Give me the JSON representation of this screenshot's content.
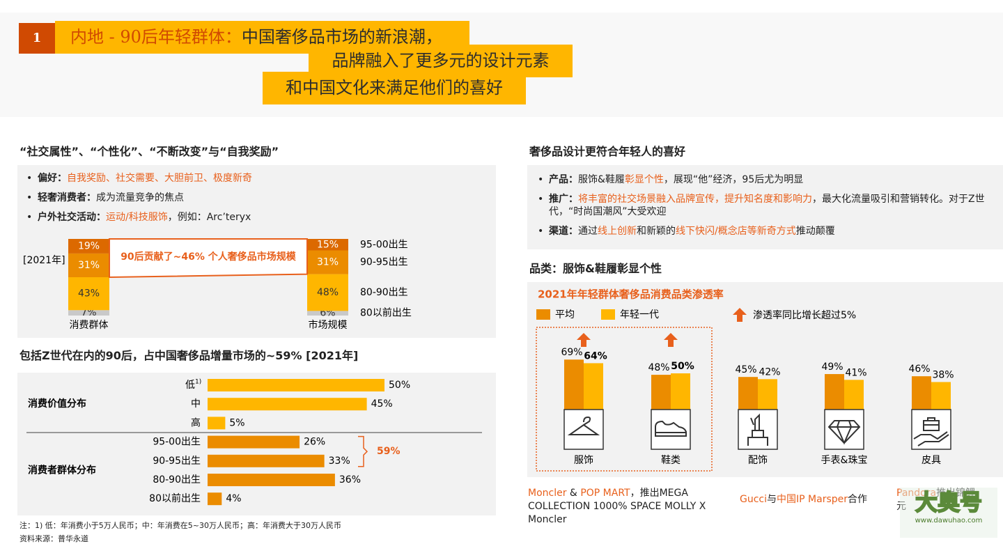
{
  "header": {
    "number": "1",
    "line1": [
      {
        "text": "内地 - 90后年轻群体：",
        "color": "#d04a02"
      },
      {
        "text": "中国奢侈品市场的新浪潮，",
        "color": "#2d2d2d"
      }
    ],
    "line2": "品牌融入了更多元的设计元素",
    "line3": "和中国文化来满足他们的喜好"
  },
  "left": {
    "title": "“社交属性”、“个性化”、“不断改变”与“自我奖励”",
    "bullets": [
      [
        {
          "text": "偏好："
        },
        {
          "text": "自我奖励、社交需要、大胆前卫、极度新奇",
          "color": "#e8601c"
        }
      ],
      [
        {
          "text": "轻奢消费者："
        },
        {
          "text": "成为流量竞争的焦点"
        }
      ],
      [
        {
          "text": "户外社交活动："
        },
        {
          "text": "运动/科技服饰",
          "color": "#e8601c"
        },
        {
          "text": "，例如：Arc’teryx"
        }
      ]
    ],
    "title2": "包括Z世代在内的90后，占中国奢侈品增量市场的~59% [2021年]",
    "footnotes": [
      "注：1) 低：年消费小于5万人民币；中：年消费在5~30万人民币；高：年消费大于30万人民币",
      "资料来源：普华永道"
    ]
  },
  "right": {
    "title": "奢侈品设计更符合年轻人的喜好",
    "bullets": [
      [
        {
          "text": "产品："
        },
        {
          "text": "服饰&鞋履"
        },
        {
          "text": "彰显个性",
          "color": "#e8601c"
        },
        {
          "text": "，展现“他”经济，95后尤为明显"
        }
      ],
      [
        {
          "text": "推广："
        },
        {
          "text": "将丰富的社交场景融入品牌宣传，提升知名度和影响力",
          "color": "#e8601c"
        },
        {
          "text": "，最大化流量吸引和营销转化。对于Z世代，“时尚国潮风”大受欢迎"
        }
      ],
      [
        {
          "text": "渠道："
        },
        {
          "text": "通过"
        },
        {
          "text": "线上创新",
          "color": "#e8601c"
        },
        {
          "text": "和新颖的"
        },
        {
          "text": "线下快闪/概念店等新奇方式",
          "color": "#e8601c"
        },
        {
          "text": "推动颠覆"
        }
      ]
    ],
    "subtitle": "品类：服饰&鞋履彰显个性",
    "captions": [
      [
        {
          "text": "Moncler",
          "color": "#e8601c"
        },
        {
          "text": " & "
        },
        {
          "text": "POP MART",
          "color": "#e8601c"
        },
        {
          "text": "，推出MEGA COLLECTION 1000% SPACE MOLLY X Moncler"
        }
      ],
      [
        {
          "text": "Gucci",
          "color": "#e8601c"
        },
        {
          "text": "与"
        },
        {
          "text": "中国IP Marsper",
          "color": "#e8601c"
        },
        {
          "text": "合作"
        }
      ],
      [
        {
          "text": "Pandora",
          "color": "#e8601c"
        },
        {
          "text": "推出锦鲤元"
        }
      ]
    ]
  },
  "watermark": [
    "大奥号",
    "www.dawuhao.com"
  ],
  "chart_data": [
    {
      "type": "stacked_bar",
      "label": "[2021年]",
      "annotation": "90后贡献了~46% 个人奢侈品市场规模",
      "annotation_color": "#e8601c",
      "categories": [
        "消费群体",
        "市场规模"
      ],
      "series": [
        {
          "name": "80以前出生",
          "color": "#c9c9c9",
          "values": [
            7,
            6
          ],
          "value_labels": [
            "7%",
            "6%"
          ]
        },
        {
          "name": "80-90出生",
          "color": "#ffb600",
          "values": [
            43,
            48
          ],
          "value_labels": [
            "43%",
            "48%"
          ]
        },
        {
          "name": "90-95出生",
          "color": "#eb8c00",
          "values": [
            31,
            31
          ],
          "value_labels": [
            "31%",
            "31%"
          ]
        },
        {
          "name": "95-00出生",
          "color": "#dc6900",
          "values": [
            19,
            15
          ],
          "value_labels": [
            "19%",
            "15%"
          ]
        }
      ]
    },
    {
      "type": "hbar",
      "category_note": "1)",
      "groups": [
        {
          "name": "消费价值分布",
          "color": "#ffb600",
          "categories": [
            "低",
            "中",
            "高"
          ],
          "values": [
            50,
            45,
            5
          ],
          "value_labels": [
            "50%",
            "45%",
            "5%"
          ]
        },
        {
          "name": "消费者群体分布",
          "color": "#eb8c00",
          "categories": [
            "95-00出生",
            "90-95出生",
            "80-90出生",
            "80以前出生"
          ],
          "values": [
            26,
            33,
            36,
            4
          ],
          "value_labels": [
            "26%",
            "33%",
            "36%",
            "4%"
          ]
        }
      ],
      "bracket": {
        "value": 59,
        "label": "59%"
      },
      "bracket_color": "#e8601c"
    },
    {
      "type": "grouped_bar",
      "title": "2021年年轻群体奢侈品消费品类渗透率",
      "categories": [
        "服饰",
        "鞋类",
        "配饰",
        "手表&珠宝",
        "皮具"
      ],
      "series": [
        {
          "name": "平均",
          "color": "#eb8c00",
          "values": [
            69,
            48,
            45,
            49,
            46
          ],
          "value_labels": [
            "69%",
            "48%",
            "45%",
            "49%",
            "46%"
          ]
        },
        {
          "name": "年轻一代",
          "color": "#ffb600",
          "values": [
            64,
            50,
            42,
            41,
            38
          ],
          "value_labels": [
            "64%",
            "50%",
            "42%",
            "41%",
            "38%"
          ]
        }
      ],
      "highlight": {
        "label": "渗透率同比增长超过5%",
        "color": "#e8601c",
        "flags": [
          true,
          true,
          false,
          false,
          false
        ]
      }
    }
  ]
}
